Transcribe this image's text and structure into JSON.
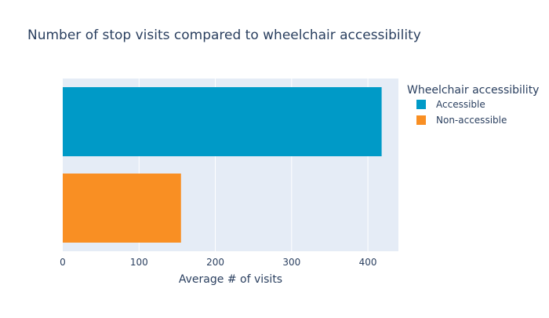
{
  "chart_data": {
    "type": "bar",
    "orientation": "horizontal",
    "title": "Number of stop visits compared to wheelchair accessibility",
    "xlabel": "Average # of visits",
    "ylabel": "",
    "xlim": [
      0,
      440
    ],
    "xticks": [
      0,
      100,
      200,
      300,
      400
    ],
    "xtick_labels": [
      "0",
      "100",
      "200",
      "300",
      "400"
    ],
    "grid": true,
    "legend_title": "Wheelchair accessibility",
    "legend_position": "top-right",
    "series": [
      {
        "name": "Accessible",
        "value": 418,
        "color": "#009ac7"
      },
      {
        "name": "Non-accessible",
        "value": 155,
        "color": "#f98f23"
      }
    ],
    "plot_background": "#e5ecf6"
  }
}
